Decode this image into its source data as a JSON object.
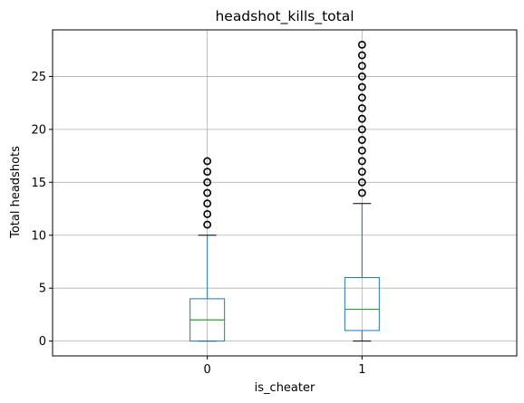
{
  "chart_data": {
    "type": "boxplot",
    "title": "headshot_kills_total",
    "xlabel": "is_cheater",
    "ylabel": "Total headshots",
    "categories": [
      "0",
      "1"
    ],
    "ylim": [
      -1.4,
      29.4
    ],
    "yticks": [
      0,
      5,
      10,
      15,
      20,
      25
    ],
    "grid": true,
    "boxes": [
      {
        "category": "0",
        "whisker_low": 0,
        "q1": 0,
        "median": 2,
        "q3": 4,
        "whisker_high": 10,
        "outliers": [
          11,
          12,
          13,
          14,
          15,
          16,
          17
        ]
      },
      {
        "category": "1",
        "whisker_low": 0,
        "q1": 1,
        "median": 3,
        "q3": 6,
        "whisker_high": 13,
        "outliers": [
          14,
          15,
          16,
          17,
          18,
          19,
          20,
          21,
          22,
          23,
          24,
          25,
          26,
          27,
          28
        ]
      }
    ],
    "colors": {
      "box": "#1f77b4",
      "median": "#2ca02c",
      "whisker_cap": "#000000",
      "outlier": "#000000",
      "grid": "#b0b0b0"
    }
  }
}
